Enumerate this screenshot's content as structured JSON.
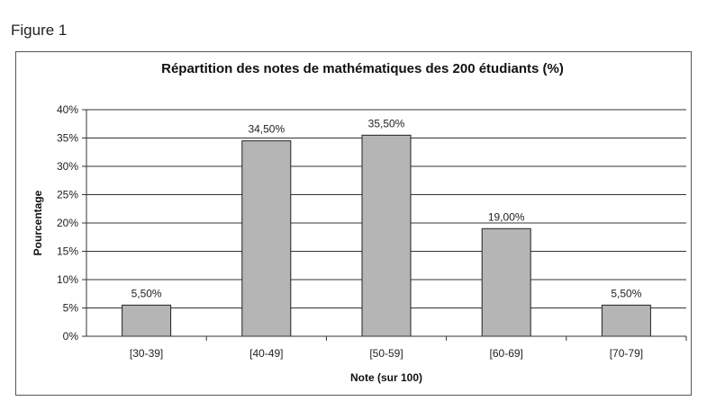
{
  "figure_label": "Figure 1",
  "chart_data": {
    "type": "bar",
    "title": "Répartition des notes de mathématiques des 200 étudiants (%)",
    "xlabel": "Note (sur 100)",
    "ylabel": "Pourcentage",
    "categories": [
      "[30-39]",
      "[40-49]",
      "[50-59]",
      "[60-69]",
      "[70-79]"
    ],
    "values": [
      5.5,
      34.5,
      35.5,
      19.0,
      5.5
    ],
    "data_labels": [
      "5,50%",
      "34,50%",
      "35,50%",
      "19,00%",
      "5,50%"
    ],
    "ylim": [
      0,
      40
    ],
    "yticks": [
      "0%",
      "5%",
      "10%",
      "15%",
      "20%",
      "25%",
      "30%",
      "35%",
      "40%"
    ],
    "grid": true,
    "bar_color": "#b5b5b5"
  }
}
